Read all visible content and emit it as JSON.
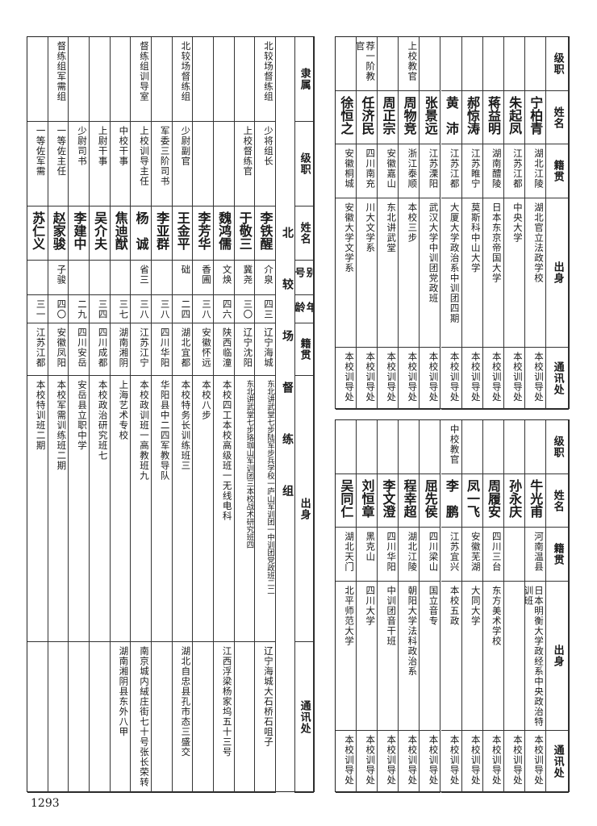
{
  "page_number": "1293",
  "left_table": {
    "section_label": "北较场督练组",
    "headers": [
      "隶属",
      "级职",
      "姓名",
      "别号",
      "年龄",
      "籍贯",
      "出身",
      "通讯处"
    ],
    "rows": [
      {
        "unit": "北较场督练组",
        "rank": "少将组长",
        "name": "李铁醒",
        "alias": "介泉",
        "age": "四三",
        "origin": "辽宁海城",
        "background": "东北讲武堂七步陆军步兵学校一庐山军训团一中训团党政班二二",
        "address": "辽宁海城大石桥石咀子"
      },
      {
        "unit": "",
        "rank": "上校督练官",
        "name": "于敬三",
        "alias": "冀尧",
        "age": "三〇",
        "origin": "辽宁沈阳",
        "background": "东北讲武堂七步珞珈山军训团三本校战术研究班四",
        "address": ""
      },
      {
        "unit": "",
        "rank": "",
        "name": "魏鸿儒",
        "alias": "文焕",
        "age": "四六",
        "origin": "陕西临潼",
        "background": "本校四工本校高级班一无线电科",
        "address": "江西浮梁杨家坞五十三号"
      },
      {
        "unit": "",
        "rank": "",
        "name": "李芳华",
        "alias": "香圃",
        "age": "三八",
        "origin": "安徽怀远",
        "background": "本校八步",
        "address": ""
      },
      {
        "unit": "北较场督练组",
        "rank": "少尉副官",
        "name": "王金平",
        "alias": "础",
        "age": "二四",
        "origin": "湖北宜都",
        "background": "本校特务长训练班三",
        "address": "湖北自忠县孔市态三盛交"
      },
      {
        "unit": "",
        "rank": "军委三阶司书",
        "name": "李亚群",
        "alias": "",
        "age": "三八",
        "origin": "四川华阳",
        "background": "华阳县中二四军教导队",
        "address": ""
      },
      {
        "unit": "督练组训导室",
        "rank": "上校训导主任",
        "name": "杨　诚",
        "alias": "省三",
        "age": "三八",
        "origin": "江苏江宁",
        "background": "本校政训班一高教班九",
        "address": "南京城内絨庄街七十号张长荣转"
      },
      {
        "unit": "",
        "rank": "中校干事",
        "name": "焦迪猷",
        "alias": "",
        "age": "三七",
        "origin": "湖南湘阴",
        "background": "上海艺术专校",
        "address": "湖南湘阴县东外八甲"
      },
      {
        "unit": "",
        "rank": "上尉干事",
        "name": "吴介夫",
        "alias": "",
        "age": "三四",
        "origin": "四川成都",
        "background": "本校政治研究班七",
        "address": ""
      },
      {
        "unit": "",
        "rank": "少尉司书",
        "name": "李建中",
        "alias": "",
        "age": "二九",
        "origin": "四川安岳",
        "background": "安岳县立职中学",
        "address": ""
      },
      {
        "unit": "督练组军需组",
        "rank": "一等佐主任",
        "name": "赵家骏",
        "alias": "子骏",
        "age": "四〇",
        "origin": "安徽凤阳",
        "background": "本校军需训练班二期",
        "address": ""
      },
      {
        "unit": "",
        "rank": "一等佐军需",
        "name": "苏仁义",
        "alias": "",
        "age": "三一",
        "origin": "江苏江都",
        "background": "本校特训班二期",
        "address": ""
      }
    ]
  },
  "right_top_table": {
    "headers": [
      "级职",
      "姓名",
      "籍贯",
      "出身",
      "通讯处"
    ],
    "rows": [
      {
        "rank": "",
        "name": "宁柏青",
        "origin": "湖北江陵",
        "background": "湖北官立法政学校",
        "address": "本校训导处"
      },
      {
        "rank": "",
        "name": "朱起凤",
        "origin": "江苏江都",
        "background": "中央大学",
        "address": "本校训导处"
      },
      {
        "rank": "",
        "name": "蒋益明",
        "origin": "湖南醴陵",
        "background": "日本东京帝国大学",
        "address": "本校训导处"
      },
      {
        "rank": "",
        "name": "郝惊涛",
        "origin": "江苏睢宁",
        "background": "莫斯科中山大学",
        "address": "本校训导处"
      },
      {
        "rank": "",
        "name": "黄　沛",
        "origin": "江苏江都",
        "background": "大厦大学政治系中训团四期",
        "address": "本校训导处"
      },
      {
        "rank": "",
        "name": "张景远",
        "origin": "江苏溧阳",
        "background": "武汉大学中训团党政班",
        "address": "本校训导处"
      },
      {
        "rank": "上校教官",
        "name": "周物竞",
        "origin": "浙江泰顺",
        "background": "本校三步",
        "address": "本校训导处"
      },
      {
        "rank": "",
        "name": "周正宗",
        "origin": "安徽嘉山",
        "background": "东北讲武堂",
        "address": "本校训导处"
      },
      {
        "rank": "荐一阶教官",
        "name": "任济民",
        "origin": "四川南充",
        "background": "川大文学系",
        "address": "本校训导处"
      },
      {
        "rank": "",
        "name": "徐恒之",
        "origin": "安徽桐城",
        "background": "安徽大学文学系",
        "address": "本校训导处"
      }
    ]
  },
  "right_bottom_table": {
    "headers": [
      "级职",
      "姓名",
      "籍贯",
      "出身",
      "通讯处"
    ],
    "rows": [
      {
        "rank": "",
        "name": "牛光甫",
        "origin": "河南温县",
        "background": "日本明衡大学政经系中央政治特训班",
        "address": "本校训导处"
      },
      {
        "rank": "",
        "name": "孙永庆",
        "origin": "",
        "background": "",
        "address": "本校训导处"
      },
      {
        "rank": "",
        "name": "周履安",
        "origin": "四川三台",
        "background": "东方美术学校",
        "address": "本校训导处"
      },
      {
        "rank": "",
        "name": "凤一飞",
        "origin": "安徽芜湖",
        "background": "大同大学",
        "address": "本校训导处"
      },
      {
        "rank": "中校教官",
        "name": "李　鹏",
        "origin": "江苏宜兴",
        "background": "本校五政",
        "address": "本校训导处"
      },
      {
        "rank": "",
        "name": "屈先侯",
        "origin": "四川梁山",
        "background": "国立音专",
        "address": "本校训导处"
      },
      {
        "rank": "",
        "name": "程幸超",
        "origin": "湖北江陵",
        "background": "朝阳大学法科政治系",
        "address": "本校训导处"
      },
      {
        "rank": "",
        "name": "李文澄",
        "origin": "四川华阳",
        "background": "中训团音干班",
        "address": "本校训导处"
      },
      {
        "rank": "",
        "name": "刘恒章",
        "origin": "黑克山",
        "background": "四川大学",
        "address": "本校训导处"
      },
      {
        "rank": "",
        "name": "吴同仁",
        "origin": "湖北天门",
        "background": "北平师范大学",
        "address": "本校训导处"
      }
    ]
  }
}
